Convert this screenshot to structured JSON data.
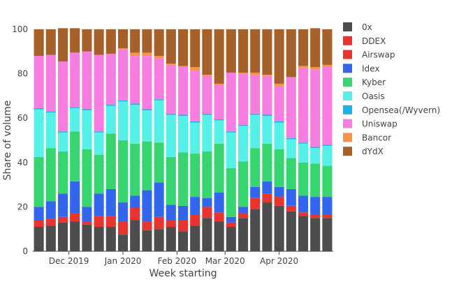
{
  "chart_data": {
    "type": "bar",
    "stacked": true,
    "xlabel": "Week starting",
    "ylabel": "Share of volume",
    "ylim": [
      0,
      100
    ],
    "yticks": [
      0,
      20,
      40,
      60,
      80,
      100
    ],
    "x_tick_labels": [
      {
        "label": "Dec 2019",
        "index": 2.5
      },
      {
        "label": "Jan 2020",
        "index": 7
      },
      {
        "label": "Feb 2020",
        "index": 11.5
      },
      {
        "label": "Mar 2020",
        "index": 15.5
      },
      {
        "label": "Apr 2020",
        "index": 20
      }
    ],
    "num_weeks": 25,
    "legend_position": "right",
    "series": [
      {
        "name": "0x",
        "color": "#4d4d4d",
        "values": [
          11,
          11.5,
          13,
          13.5,
          12,
          11,
          11,
          7.5,
          14,
          9.5,
          10,
          11,
          9,
          11.5,
          15,
          13.5,
          11,
          15,
          19,
          22,
          20.5,
          18,
          16,
          15,
          15
        ]
      },
      {
        "name": "DDEX",
        "color": "#e8332e",
        "values": [
          0,
          0,
          0,
          0,
          0,
          0,
          0,
          0,
          0,
          0,
          0,
          0,
          0,
          0,
          0,
          0,
          0,
          0,
          0,
          0,
          0,
          0,
          0,
          0,
          0
        ]
      },
      {
        "name": "Airswap",
        "color": "#e8332e",
        "values": [
          3,
          3,
          2.5,
          3.5,
          1.5,
          5,
          5,
          6,
          5.5,
          4,
          5.5,
          3,
          5,
          5,
          5,
          4,
          2,
          2,
          5,
          4,
          4,
          2.5,
          1.5,
          1.5,
          1.5
        ]
      },
      {
        "name": "Idex",
        "color": "#3366ee",
        "values": [
          6,
          8,
          10.5,
          14.5,
          6.5,
          10,
          12,
          8.5,
          5.5,
          14,
          15.5,
          7,
          6.5,
          8,
          4,
          9,
          2.5,
          3,
          5,
          5.5,
          4.5,
          7.5,
          7.5,
          8,
          8
        ]
      },
      {
        "name": "Kyber",
        "color": "#36d56f",
        "values": [
          22.5,
          24,
          19,
          22.5,
          26,
          17.5,
          25,
          28,
          23.5,
          22,
          18,
          21.5,
          24,
          19.5,
          21,
          22,
          22,
          20.5,
          17.5,
          17,
          17,
          14,
          15,
          15,
          14
        ]
      },
      {
        "name": "Oasis",
        "color": "#55f0e8",
        "values": [
          21.5,
          16,
          8.5,
          10.5,
          17.5,
          10,
          12.5,
          17.5,
          17.5,
          14,
          19,
          19,
          16.5,
          14,
          16.5,
          10.5,
          16,
          16,
          15,
          12.5,
          12,
          8.5,
          8.5,
          7,
          9
        ]
      },
      {
        "name": "Opensea(/Wyvern)",
        "color": "#1ab3e6",
        "values": [
          0.5,
          0.5,
          0.5,
          0.5,
          0.5,
          0.5,
          0.5,
          0.5,
          0.5,
          0.5,
          0.5,
          0.5,
          0.5,
          0.5,
          0.5,
          0.5,
          0.5,
          0.5,
          0.5,
          0.5,
          0.5,
          0.5,
          0.5,
          0.5,
          0.5
        ]
      },
      {
        "name": "Uniswap",
        "color": "#f77ee0",
        "values": [
          23.5,
          25.5,
          31.5,
          24.5,
          26,
          34.5,
          23,
          23,
          21.5,
          24,
          18.5,
          22,
          21.5,
          23,
          17,
          15.5,
          26.5,
          23,
          17.5,
          17.5,
          16,
          27.5,
          33.5,
          35,
          35
        ]
      },
      {
        "name": "Bancor",
        "color": "#f79247",
        "values": [
          0,
          0,
          0,
          0,
          0,
          0,
          0,
          0.5,
          1.5,
          1.5,
          1,
          0.5,
          0.5,
          1.5,
          0.5,
          0.5,
          0,
          0.5,
          1,
          0.5,
          1,
          0,
          1,
          1,
          1
        ]
      },
      {
        "name": "dYdX",
        "color": "#a6612b",
        "values": [
          12,
          11.5,
          15,
          11,
          10,
          11.5,
          11,
          8.5,
          10.5,
          10.5,
          12,
          15.5,
          16.5,
          17,
          20.5,
          24.5,
          19.5,
          19.5,
          19.5,
          20.5,
          24.5,
          21.5,
          16.5,
          17.5,
          16
        ]
      }
    ]
  }
}
